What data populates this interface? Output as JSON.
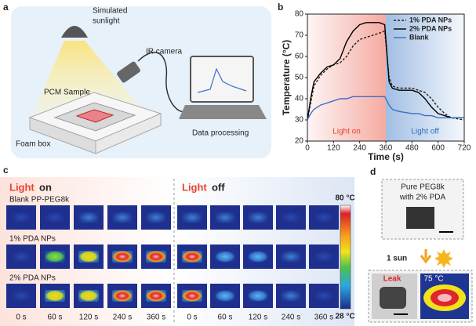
{
  "panel_labels": [
    "a",
    "b",
    "c",
    "d"
  ],
  "panel_a": {
    "sunlight": [
      "Simulated",
      "sunlight"
    ],
    "camera": "IR camera",
    "sample": "PCM Sample",
    "box": "Foam box",
    "processing": "Data processing"
  },
  "chart_data": {
    "type": "line",
    "x_label": "Time (s)",
    "y_label": "Temperature (°C)",
    "x": [
      0,
      15,
      30,
      60,
      90,
      120,
      150,
      180,
      210,
      240,
      270,
      300,
      330,
      355,
      375,
      390,
      420,
      480,
      510,
      540,
      570,
      600,
      630,
      660,
      720
    ],
    "series": [
      {
        "name": "1% PDA NPs",
        "color": "#222222",
        "style": "dashed",
        "values": [
          30,
          38,
          46,
          51,
          54,
          56,
          57,
          60,
          65,
          68,
          69,
          70,
          71,
          72,
          50,
          46,
          45,
          45,
          44,
          43,
          40,
          36,
          33,
          31,
          30
        ]
      },
      {
        "name": "2% PDA NPs",
        "color": "#000000",
        "style": "solid",
        "values": [
          30,
          40,
          48,
          52,
          55,
          56,
          59,
          67,
          72,
          75,
          76,
          76,
          76,
          75,
          48,
          45,
          44,
          44,
          43,
          40,
          36,
          33,
          32,
          31,
          31
        ]
      },
      {
        "name": "Blank",
        "color": "#3a6fc9",
        "style": "solid",
        "values": [
          30,
          33,
          35,
          37,
          38,
          39,
          40,
          40,
          41,
          41,
          41,
          41,
          41,
          41,
          37,
          35,
          34,
          33,
          33,
          32,
          32,
          31,
          31,
          31,
          31
        ]
      }
    ],
    "regions": [
      {
        "label": "Light on",
        "x": [
          0,
          360
        ],
        "color": "#e8432f"
      },
      {
        "label": "Light off",
        "x": [
          360,
          720
        ],
        "color": "#2f6fc0"
      }
    ],
    "xlim": [
      0,
      720
    ],
    "xticks": [
      0,
      120,
      240,
      360,
      480,
      600,
      720
    ],
    "ylim": [
      20,
      80
    ],
    "yticks": [
      20,
      30,
      40,
      50,
      60,
      70,
      80
    ],
    "legend": "upper right"
  },
  "panel_c": {
    "headers": [
      {
        "highlight": "Light",
        "rest": "on"
      },
      {
        "highlight": "Light",
        "rest": "off"
      }
    ],
    "rows": [
      "Blank PP-PEG8k",
      "1% PDA NPs",
      "2% PDA NPs"
    ],
    "times": [
      "0 s",
      "60 s",
      "120 s",
      "240 s",
      "360 s",
      "0 s",
      "60 s",
      "120 s",
      "240 s",
      "360 s"
    ],
    "colorbar": [
      "80 °C",
      "28 °C"
    ]
  },
  "panel_d": {
    "sample": [
      "Pure PEG8k",
      "with 2% PDA"
    ],
    "condition": "1 sun",
    "leak": "Leak",
    "temperature": "75 °C"
  }
}
